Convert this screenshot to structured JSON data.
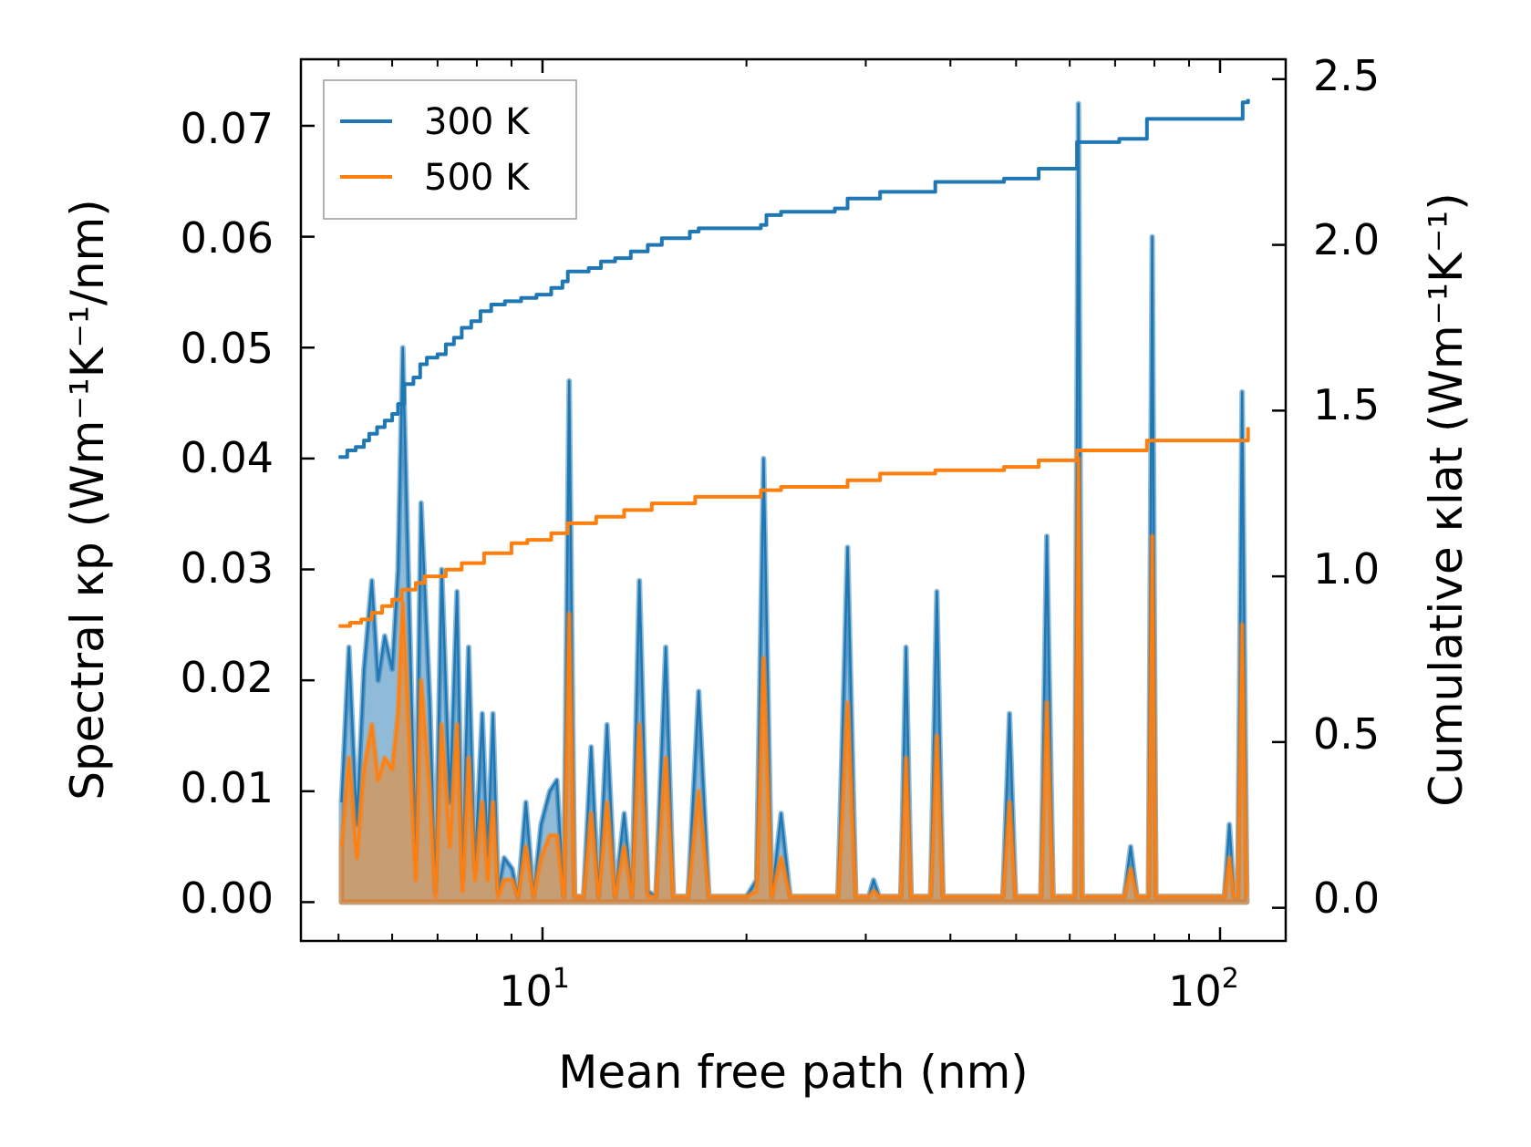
{
  "chart_data": {
    "type": "line",
    "xscale": "log",
    "xlabel": "Mean free path (nm)",
    "ylabel_left": "Spectral κp (Wm⁻¹K⁻¹/nm)",
    "ylabel_right": "Cumulative κlat (Wm⁻¹K⁻¹)",
    "xlim": [
      4.4,
      125
    ],
    "ylim_left": [
      -0.0035,
      0.076
    ],
    "ylim_right": [
      -0.1,
      2.56
    ],
    "x_ticks": [
      {
        "value": 10,
        "base": "10",
        "exp": "1"
      },
      {
        "value": 100,
        "base": "10",
        "exp": "2"
      }
    ],
    "y_ticks_left": [
      "0.00",
      "0.01",
      "0.02",
      "0.03",
      "0.04",
      "0.05",
      "0.06",
      "0.07"
    ],
    "y_ticks_right": [
      "0.0",
      "0.5",
      "1.0",
      "1.5",
      "2.0",
      "2.5"
    ],
    "legend": {
      "location": "upper-left",
      "entries": [
        "300 K",
        "500 K"
      ]
    },
    "colors": {
      "300 K": "#1f77b4",
      "500 K": "#ff7f0e"
    },
    "spectral_300K": [
      [
        5.05,
        0.009
      ],
      [
        5.18,
        0.023
      ],
      [
        5.32,
        0.007
      ],
      [
        5.45,
        0.021
      ],
      [
        5.6,
        0.029
      ],
      [
        5.72,
        0.02
      ],
      [
        5.85,
        0.024
      ],
      [
        6.0,
        0.021
      ],
      [
        6.12,
        0.03
      ],
      [
        6.22,
        0.05
      ],
      [
        6.38,
        0.023
      ],
      [
        6.5,
        0.004
      ],
      [
        6.62,
        0.036
      ],
      [
        6.82,
        0.018
      ],
      [
        6.95,
        0.001
      ],
      [
        7.1,
        0.03
      ],
      [
        7.3,
        0.009
      ],
      [
        7.48,
        0.028
      ],
      [
        7.62,
        0.002
      ],
      [
        7.78,
        0.023
      ],
      [
        7.95,
        0.003
      ],
      [
        8.15,
        0.017
      ],
      [
        8.3,
        0.004
      ],
      [
        8.45,
        0.017
      ],
      [
        8.6,
        0.001
      ],
      [
        8.78,
        0.004
      ],
      [
        9.02,
        0.003
      ],
      [
        9.2,
        0.0005
      ],
      [
        9.45,
        0.009
      ],
      [
        9.7,
        0.0005
      ],
      [
        9.95,
        0.007
      ],
      [
        10.25,
        0.01
      ],
      [
        10.5,
        0.011
      ],
      [
        10.75,
        0.0005
      ],
      [
        10.95,
        0.047
      ],
      [
        11.15,
        0.0005
      ],
      [
        11.5,
        0.0005
      ],
      [
        11.8,
        0.014
      ],
      [
        12.1,
        0.0005
      ],
      [
        12.45,
        0.016
      ],
      [
        12.8,
        0.0005
      ],
      [
        13.2,
        0.008
      ],
      [
        13.55,
        0.0005
      ],
      [
        13.9,
        0.029
      ],
      [
        14.3,
        0.001
      ],
      [
        14.7,
        0.0005
      ],
      [
        15.2,
        0.023
      ],
      [
        15.6,
        0.0005
      ],
      [
        16.4,
        0.0005
      ],
      [
        17.0,
        0.019
      ],
      [
        17.6,
        0.0005
      ],
      [
        20.0,
        0.0005
      ],
      [
        20.7,
        0.002
      ],
      [
        21.2,
        0.04
      ],
      [
        21.8,
        0.0005
      ],
      [
        22.5,
        0.008
      ],
      [
        23.2,
        0.0005
      ],
      [
        27.3,
        0.0005
      ],
      [
        28.2,
        0.032
      ],
      [
        29.0,
        0.0005
      ],
      [
        30.3,
        0.0005
      ],
      [
        30.8,
        0.002
      ],
      [
        31.4,
        0.0005
      ],
      [
        33.8,
        0.0005
      ],
      [
        34.4,
        0.023
      ],
      [
        35.0,
        0.0005
      ],
      [
        37.4,
        0.0005
      ],
      [
        38.2,
        0.028
      ],
      [
        39.0,
        0.0005
      ],
      [
        47.8,
        0.0005
      ],
      [
        48.9,
        0.017
      ],
      [
        49.9,
        0.0005
      ],
      [
        54.4,
        0.0005
      ],
      [
        55.5,
        0.033
      ],
      [
        56.7,
        0.0005
      ],
      [
        61.0,
        0.0005
      ],
      [
        61.8,
        0.072
      ],
      [
        62.6,
        0.0005
      ],
      [
        72.2,
        0.0005
      ],
      [
        73.8,
        0.005
      ],
      [
        75.4,
        0.0005
      ],
      [
        78.4,
        0.0005
      ],
      [
        79.4,
        0.06
      ],
      [
        80.4,
        0.0005
      ],
      [
        101.5,
        0.0005
      ],
      [
        103.2,
        0.007
      ],
      [
        104.9,
        0.0005
      ],
      [
        106.2,
        0.0005
      ],
      [
        107.8,
        0.046
      ],
      [
        109.5,
        0.0005
      ]
    ],
    "spectral_500K": [
      [
        5.05,
        0.005
      ],
      [
        5.18,
        0.013
      ],
      [
        5.32,
        0.004
      ],
      [
        5.45,
        0.012
      ],
      [
        5.6,
        0.016
      ],
      [
        5.72,
        0.011
      ],
      [
        5.85,
        0.013
      ],
      [
        6.0,
        0.012
      ],
      [
        6.12,
        0.017
      ],
      [
        6.22,
        0.027
      ],
      [
        6.38,
        0.013
      ],
      [
        6.5,
        0.002
      ],
      [
        6.62,
        0.02
      ],
      [
        6.82,
        0.01
      ],
      [
        6.95,
        0.0005
      ],
      [
        7.1,
        0.016
      ],
      [
        7.3,
        0.005
      ],
      [
        7.48,
        0.016
      ],
      [
        7.62,
        0.001
      ],
      [
        7.78,
        0.013
      ],
      [
        7.95,
        0.002
      ],
      [
        8.15,
        0.009
      ],
      [
        8.3,
        0.002
      ],
      [
        8.45,
        0.009
      ],
      [
        8.6,
        0.0005
      ],
      [
        8.78,
        0.002
      ],
      [
        9.02,
        0.002
      ],
      [
        9.2,
        0.0005
      ],
      [
        9.45,
        0.005
      ],
      [
        9.7,
        0.0005
      ],
      [
        9.95,
        0.004
      ],
      [
        10.25,
        0.006
      ],
      [
        10.5,
        0.006
      ],
      [
        10.75,
        0.0005
      ],
      [
        10.95,
        0.026
      ],
      [
        11.15,
        0.0005
      ],
      [
        11.5,
        0.0005
      ],
      [
        11.8,
        0.008
      ],
      [
        12.1,
        0.0005
      ],
      [
        12.45,
        0.009
      ],
      [
        12.8,
        0.0005
      ],
      [
        13.2,
        0.005
      ],
      [
        13.55,
        0.0005
      ],
      [
        13.9,
        0.016
      ],
      [
        14.3,
        0.0005
      ],
      [
        14.7,
        0.0005
      ],
      [
        15.2,
        0.013
      ],
      [
        15.6,
        0.0005
      ],
      [
        16.4,
        0.0005
      ],
      [
        17.0,
        0.01
      ],
      [
        17.6,
        0.0005
      ],
      [
        20.0,
        0.0005
      ],
      [
        20.7,
        0.001
      ],
      [
        21.2,
        0.022
      ],
      [
        21.8,
        0.0005
      ],
      [
        22.5,
        0.004
      ],
      [
        23.2,
        0.0005
      ],
      [
        27.3,
        0.0005
      ],
      [
        28.2,
        0.018
      ],
      [
        29.0,
        0.0005
      ],
      [
        30.3,
        0.0005
      ],
      [
        30.8,
        0.001
      ],
      [
        31.4,
        0.0005
      ],
      [
        33.8,
        0.0005
      ],
      [
        34.4,
        0.013
      ],
      [
        35.0,
        0.0005
      ],
      [
        37.4,
        0.0005
      ],
      [
        38.2,
        0.015
      ],
      [
        39.0,
        0.0005
      ],
      [
        47.8,
        0.0005
      ],
      [
        48.9,
        0.009
      ],
      [
        49.9,
        0.0005
      ],
      [
        54.4,
        0.0005
      ],
      [
        55.5,
        0.018
      ],
      [
        56.7,
        0.0005
      ],
      [
        61.0,
        0.0005
      ],
      [
        61.8,
        0.04
      ],
      [
        62.6,
        0.0005
      ],
      [
        72.2,
        0.0005
      ],
      [
        73.8,
        0.003
      ],
      [
        75.4,
        0.0005
      ],
      [
        78.4,
        0.0005
      ],
      [
        79.4,
        0.033
      ],
      [
        80.4,
        0.0005
      ],
      [
        101.5,
        0.0005
      ],
      [
        103.2,
        0.004
      ],
      [
        104.9,
        0.0005
      ],
      [
        106.2,
        0.0005
      ],
      [
        107.8,
        0.025
      ],
      [
        109.5,
        0.0005
      ]
    ],
    "cumulative_300K": [
      [
        5.0,
        1.36
      ],
      [
        5.15,
        1.38
      ],
      [
        5.3,
        1.39
      ],
      [
        5.45,
        1.41
      ],
      [
        5.55,
        1.43
      ],
      [
        5.7,
        1.45
      ],
      [
        5.85,
        1.47
      ],
      [
        6.0,
        1.49
      ],
      [
        6.12,
        1.52
      ],
      [
        6.25,
        1.58
      ],
      [
        6.45,
        1.6
      ],
      [
        6.6,
        1.64
      ],
      [
        6.75,
        1.66
      ],
      [
        7.0,
        1.67
      ],
      [
        7.2,
        1.7
      ],
      [
        7.4,
        1.72
      ],
      [
        7.6,
        1.75
      ],
      [
        7.85,
        1.77
      ],
      [
        8.1,
        1.8
      ],
      [
        8.4,
        1.82
      ],
      [
        8.8,
        1.83
      ],
      [
        9.3,
        1.84
      ],
      [
        9.8,
        1.85
      ],
      [
        10.3,
        1.87
      ],
      [
        10.7,
        1.89
      ],
      [
        10.9,
        1.92
      ],
      [
        11.7,
        1.93
      ],
      [
        12.2,
        1.95
      ],
      [
        12.8,
        1.96
      ],
      [
        13.5,
        1.98
      ],
      [
        14.3,
        2.0
      ],
      [
        15.0,
        2.02
      ],
      [
        16.5,
        2.04
      ],
      [
        17.0,
        2.05
      ],
      [
        21.0,
        2.06
      ],
      [
        21.4,
        2.09
      ],
      [
        22.5,
        2.1
      ],
      [
        27.0,
        2.11
      ],
      [
        28.2,
        2.14
      ],
      [
        31.5,
        2.16
      ],
      [
        38.0,
        2.19
      ],
      [
        48.0,
        2.2
      ],
      [
        54.0,
        2.23
      ],
      [
        61.5,
        2.31
      ],
      [
        71.0,
        2.32
      ],
      [
        78.0,
        2.38
      ],
      [
        104.0,
        2.38
      ],
      [
        108.0,
        2.43
      ],
      [
        110.0,
        2.44
      ]
    ],
    "cumulative_500K": [
      [
        5.0,
        0.85
      ],
      [
        5.2,
        0.86
      ],
      [
        5.4,
        0.87
      ],
      [
        5.6,
        0.89
      ],
      [
        5.8,
        0.91
      ],
      [
        6.0,
        0.93
      ],
      [
        6.2,
        0.96
      ],
      [
        6.5,
        0.98
      ],
      [
        6.7,
        1.0
      ],
      [
        7.2,
        1.02
      ],
      [
        7.6,
        1.04
      ],
      [
        8.2,
        1.07
      ],
      [
        9.0,
        1.1
      ],
      [
        9.5,
        1.11
      ],
      [
        10.3,
        1.13
      ],
      [
        10.9,
        1.16
      ],
      [
        12.0,
        1.18
      ],
      [
        13.2,
        1.2
      ],
      [
        14.5,
        1.22
      ],
      [
        16.8,
        1.24
      ],
      [
        21.0,
        1.26
      ],
      [
        22.5,
        1.27
      ],
      [
        28.2,
        1.29
      ],
      [
        31.5,
        1.31
      ],
      [
        38.0,
        1.32
      ],
      [
        48.0,
        1.33
      ],
      [
        54.0,
        1.35
      ],
      [
        61.5,
        1.38
      ],
      [
        78.0,
        1.41
      ],
      [
        104.0,
        1.41
      ],
      [
        110.0,
        1.45
      ]
    ]
  }
}
